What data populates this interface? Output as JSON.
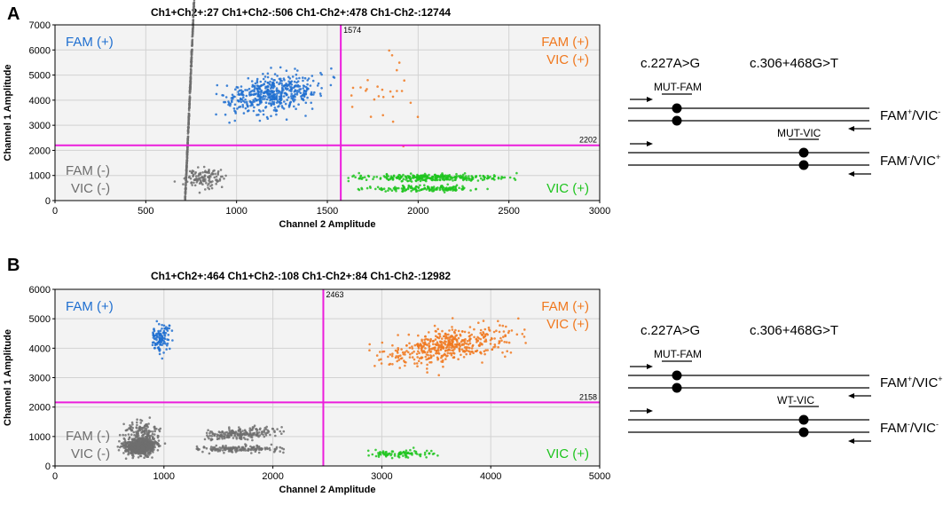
{
  "colors": {
    "fam": "#1f6fd0",
    "vic": "#1dc41d",
    "double": "#f0781e",
    "neg": "#6e6e6e",
    "threshold": "#ec1ddc",
    "plot_bg": "#f3f3f3",
    "grid": "#d2d2d2"
  },
  "chart_data": [
    {
      "panel": "A",
      "type": "scatter",
      "counts": "Ch1+Ch2+:27    Ch1+Ch2-:506    Ch1-Ch2+:478    Ch1-Ch2-:12744",
      "xlabel": "Channel 2 Amplitude",
      "ylabel": "Channel 1 Amplitude",
      "xlim": [
        0,
        3000
      ],
      "ylim": [
        0,
        7000
      ],
      "xticks": [
        0,
        500,
        1000,
        1500,
        2000,
        2500,
        3000
      ],
      "yticks": [
        0,
        1000,
        2000,
        3000,
        4000,
        5000,
        6000,
        7000
      ],
      "x_threshold": 1574,
      "y_threshold": 2202,
      "quadrants": {
        "fam": "FAM (+)",
        "double_fam": "FAM (+)",
        "double_vic": "VIC (+)",
        "neg_fam": "FAM (-)",
        "neg_vic": "VIC (-)",
        "vic": "VIC (+)"
      },
      "clusters": [
        {
          "name": "neg",
          "n": 700,
          "cx": 720,
          "cy": 560,
          "sx": 70,
          "sy": 110,
          "tx": 160,
          "xmin": 540,
          "xmax": 1250
        },
        {
          "name": "neg",
          "n": 120,
          "cx": 820,
          "cy": 900,
          "sx": 60,
          "sy": 180,
          "tx": 0,
          "xmin": 600,
          "xmax": 1000
        },
        {
          "name": "fam",
          "n": 480,
          "cx": 1200,
          "cy": 4250,
          "sx": 130,
          "sy": 360,
          "tx": 0.95,
          "xmin": 840,
          "xmax": 1540
        },
        {
          "name": "vic",
          "n": 300,
          "cx": 2080,
          "cy": 920,
          "sx": 230,
          "sy": 70,
          "tx": 0,
          "xmin": 1600,
          "xmax": 2550
        },
        {
          "name": "vic",
          "n": 160,
          "cx": 2050,
          "cy": 470,
          "sx": 170,
          "sy": 60,
          "tx": 0,
          "xmin": 1620,
          "xmax": 2400
        },
        {
          "name": "double",
          "n": 27,
          "cx": 1800,
          "cy": 4200,
          "sx": 120,
          "sy": 900,
          "tx": 0,
          "xmin": 1600,
          "xmax": 2350
        }
      ]
    },
    {
      "panel": "B",
      "type": "scatter",
      "counts": "Ch1+Ch2+:464    Ch1+Ch2-:108    Ch1-Ch2+:84    Ch1-Ch2-:12982",
      "xlabel": "Channel 2 Amplitude",
      "ylabel": "Channel 1 Amplitude",
      "xlim": [
        0,
        5000
      ],
      "ylim": [
        0,
        6000
      ],
      "xticks": [
        0,
        1000,
        2000,
        3000,
        4000,
        5000
      ],
      "yticks": [
        0,
        1000,
        2000,
        3000,
        4000,
        5000,
        6000
      ],
      "x_threshold": 2463,
      "y_threshold": 2158,
      "quadrants": {
        "fam": "FAM (+)",
        "double_fam": "FAM (+)",
        "double_vic": "VIC (+)",
        "neg_fam": "FAM (-)",
        "neg_vic": "VIC (-)",
        "vic": "VIC (+)"
      },
      "clusters": [
        {
          "name": "neg",
          "n": 650,
          "cx": 780,
          "cy": 650,
          "sx": 70,
          "sy": 140,
          "tx": 0,
          "xmin": 560,
          "xmax": 1050
        },
        {
          "name": "neg",
          "n": 150,
          "cx": 800,
          "cy": 1100,
          "sx": 80,
          "sy": 220,
          "tx": 0,
          "xmin": 600,
          "xmax": 1050
        },
        {
          "name": "neg",
          "n": 200,
          "cx": 1700,
          "cy": 1100,
          "sx": 230,
          "sy": 90,
          "tx": 0.25,
          "xmin": 1350,
          "xmax": 2100
        },
        {
          "name": "neg",
          "n": 150,
          "cx": 1650,
          "cy": 580,
          "sx": 240,
          "sy": 60,
          "tx": 0,
          "xmin": 1300,
          "xmax": 2150
        },
        {
          "name": "fam",
          "n": 108,
          "cx": 970,
          "cy": 4350,
          "sx": 55,
          "sy": 270,
          "tx": 0,
          "xmin": 880,
          "xmax": 1080
        },
        {
          "name": "vic",
          "n": 84,
          "cx": 3150,
          "cy": 420,
          "sx": 180,
          "sy": 60,
          "tx": 0,
          "xmin": 2800,
          "xmax": 3550
        },
        {
          "name": "double",
          "n": 464,
          "cx": 3650,
          "cy": 4120,
          "sx": 300,
          "sy": 280,
          "tx": 0.55,
          "xmin": 2700,
          "xmax": 4350
        }
      ]
    }
  ],
  "schematics": [
    {
      "panel": "A",
      "mut1": "c.227A>G",
      "mut2": "c.306+468G>T",
      "probe1": "MUT-FAM",
      "probe2": "MUT-VIC",
      "geno1": {
        "main": "FAM",
        "sup1": "+",
        "mid": "/VIC",
        "sup2": "-"
      },
      "geno2": {
        "main": "FAM",
        "sup1": "-",
        "mid": "/VIC",
        "sup2": "+"
      }
    },
    {
      "panel": "B",
      "mut1": "c.227A>G",
      "mut2": "c.306+468G>T",
      "probe1": "MUT-FAM",
      "probe2": "WT-VIC",
      "geno1": {
        "main": "FAM",
        "sup1": "+",
        "mid": "/VIC",
        "sup2": "+"
      },
      "geno2": {
        "main": "FAM",
        "sup1": "-",
        "mid": "/VIC",
        "sup2": "-"
      }
    }
  ]
}
